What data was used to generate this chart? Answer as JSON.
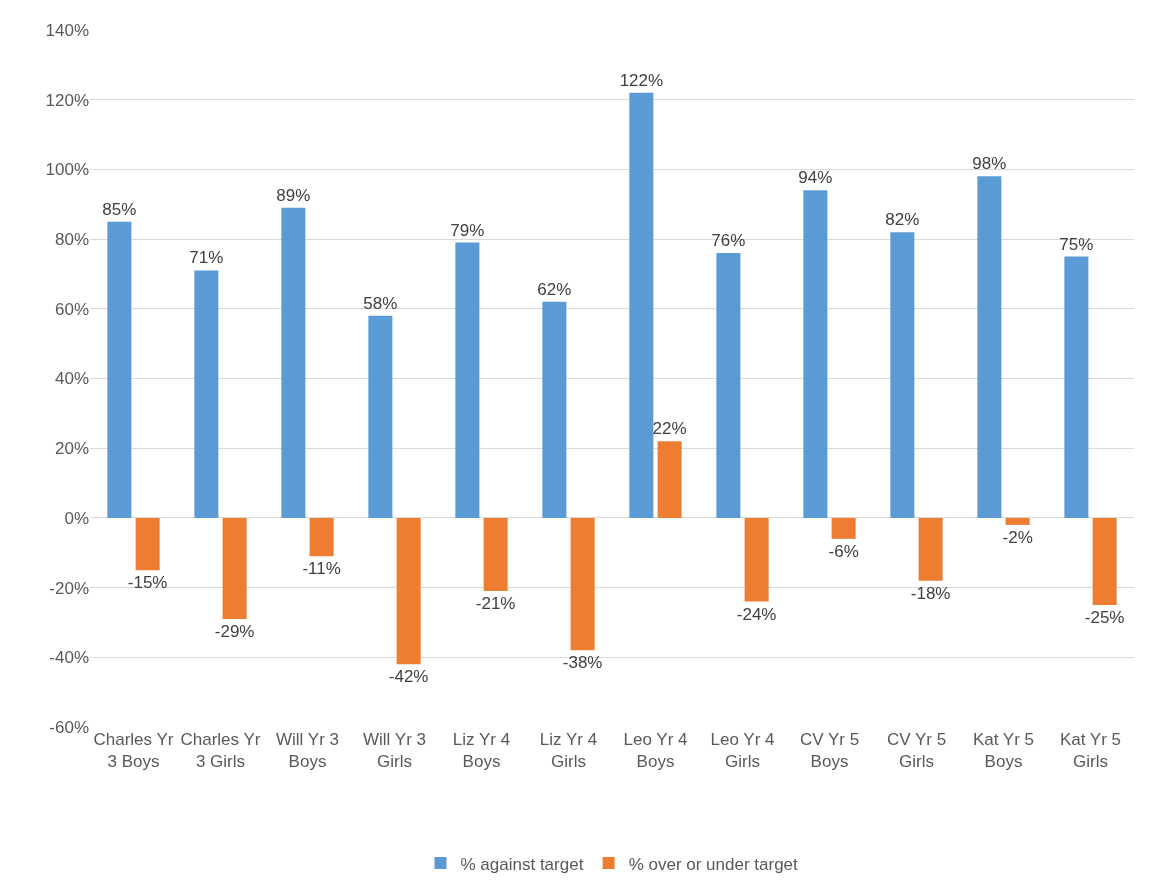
{
  "chart_data": {
    "type": "bar",
    "categories": [
      "Charles Yr 3 Boys",
      "Charles Yr 3 Girls",
      "Will Yr 3 Boys",
      "Will Yr 3 Girls",
      "Liz Yr 4 Boys",
      "Liz Yr 4 Girls",
      "Leo Yr 4 Boys",
      "Leo Yr 4 Girls",
      "CV Yr 5 Boys",
      "CV Yr 5 Girls",
      "Kat Yr 5 Boys",
      "Kat Yr 5 Girls"
    ],
    "series": [
      {
        "name": "% against target",
        "color": "#5b9bd5",
        "values": [
          85,
          71,
          89,
          58,
          79,
          62,
          122,
          76,
          94,
          82,
          98,
          75
        ],
        "value_labels": [
          "85%",
          "71%",
          "89%",
          "58%",
          "79%",
          "62%",
          "122%",
          "76%",
          "94%",
          "82%",
          "98%",
          "75%"
        ]
      },
      {
        "name": "% over or under target",
        "color": "#ed7d31",
        "values": [
          -15,
          -29,
          -11,
          -42,
          -21,
          -38,
          22,
          -24,
          -6,
          -18,
          -2,
          -25
        ],
        "value_labels": [
          "-15%",
          "-29%",
          "-11%",
          "-42%",
          "-21%",
          "-38%",
          "22%",
          "-24%",
          "-6%",
          "-18%",
          "-2%",
          "-25%"
        ]
      }
    ],
    "ylim": [
      -60,
      140
    ],
    "yticks": [
      {
        "value": -60,
        "label": "-60%"
      },
      {
        "value": -40,
        "label": "-40%"
      },
      {
        "value": -20,
        "label": "-20%"
      },
      {
        "value": 0,
        "label": "0%"
      },
      {
        "value": 20,
        "label": "20%"
      },
      {
        "value": 40,
        "label": "40%"
      },
      {
        "value": 60,
        "label": "60%"
      },
      {
        "value": 80,
        "label": "80%"
      },
      {
        "value": 100,
        "label": "100%"
      },
      {
        "value": 120,
        "label": "120%"
      },
      {
        "value": 140,
        "label": "140%"
      }
    ],
    "grid": "y",
    "legend": "bottom"
  }
}
